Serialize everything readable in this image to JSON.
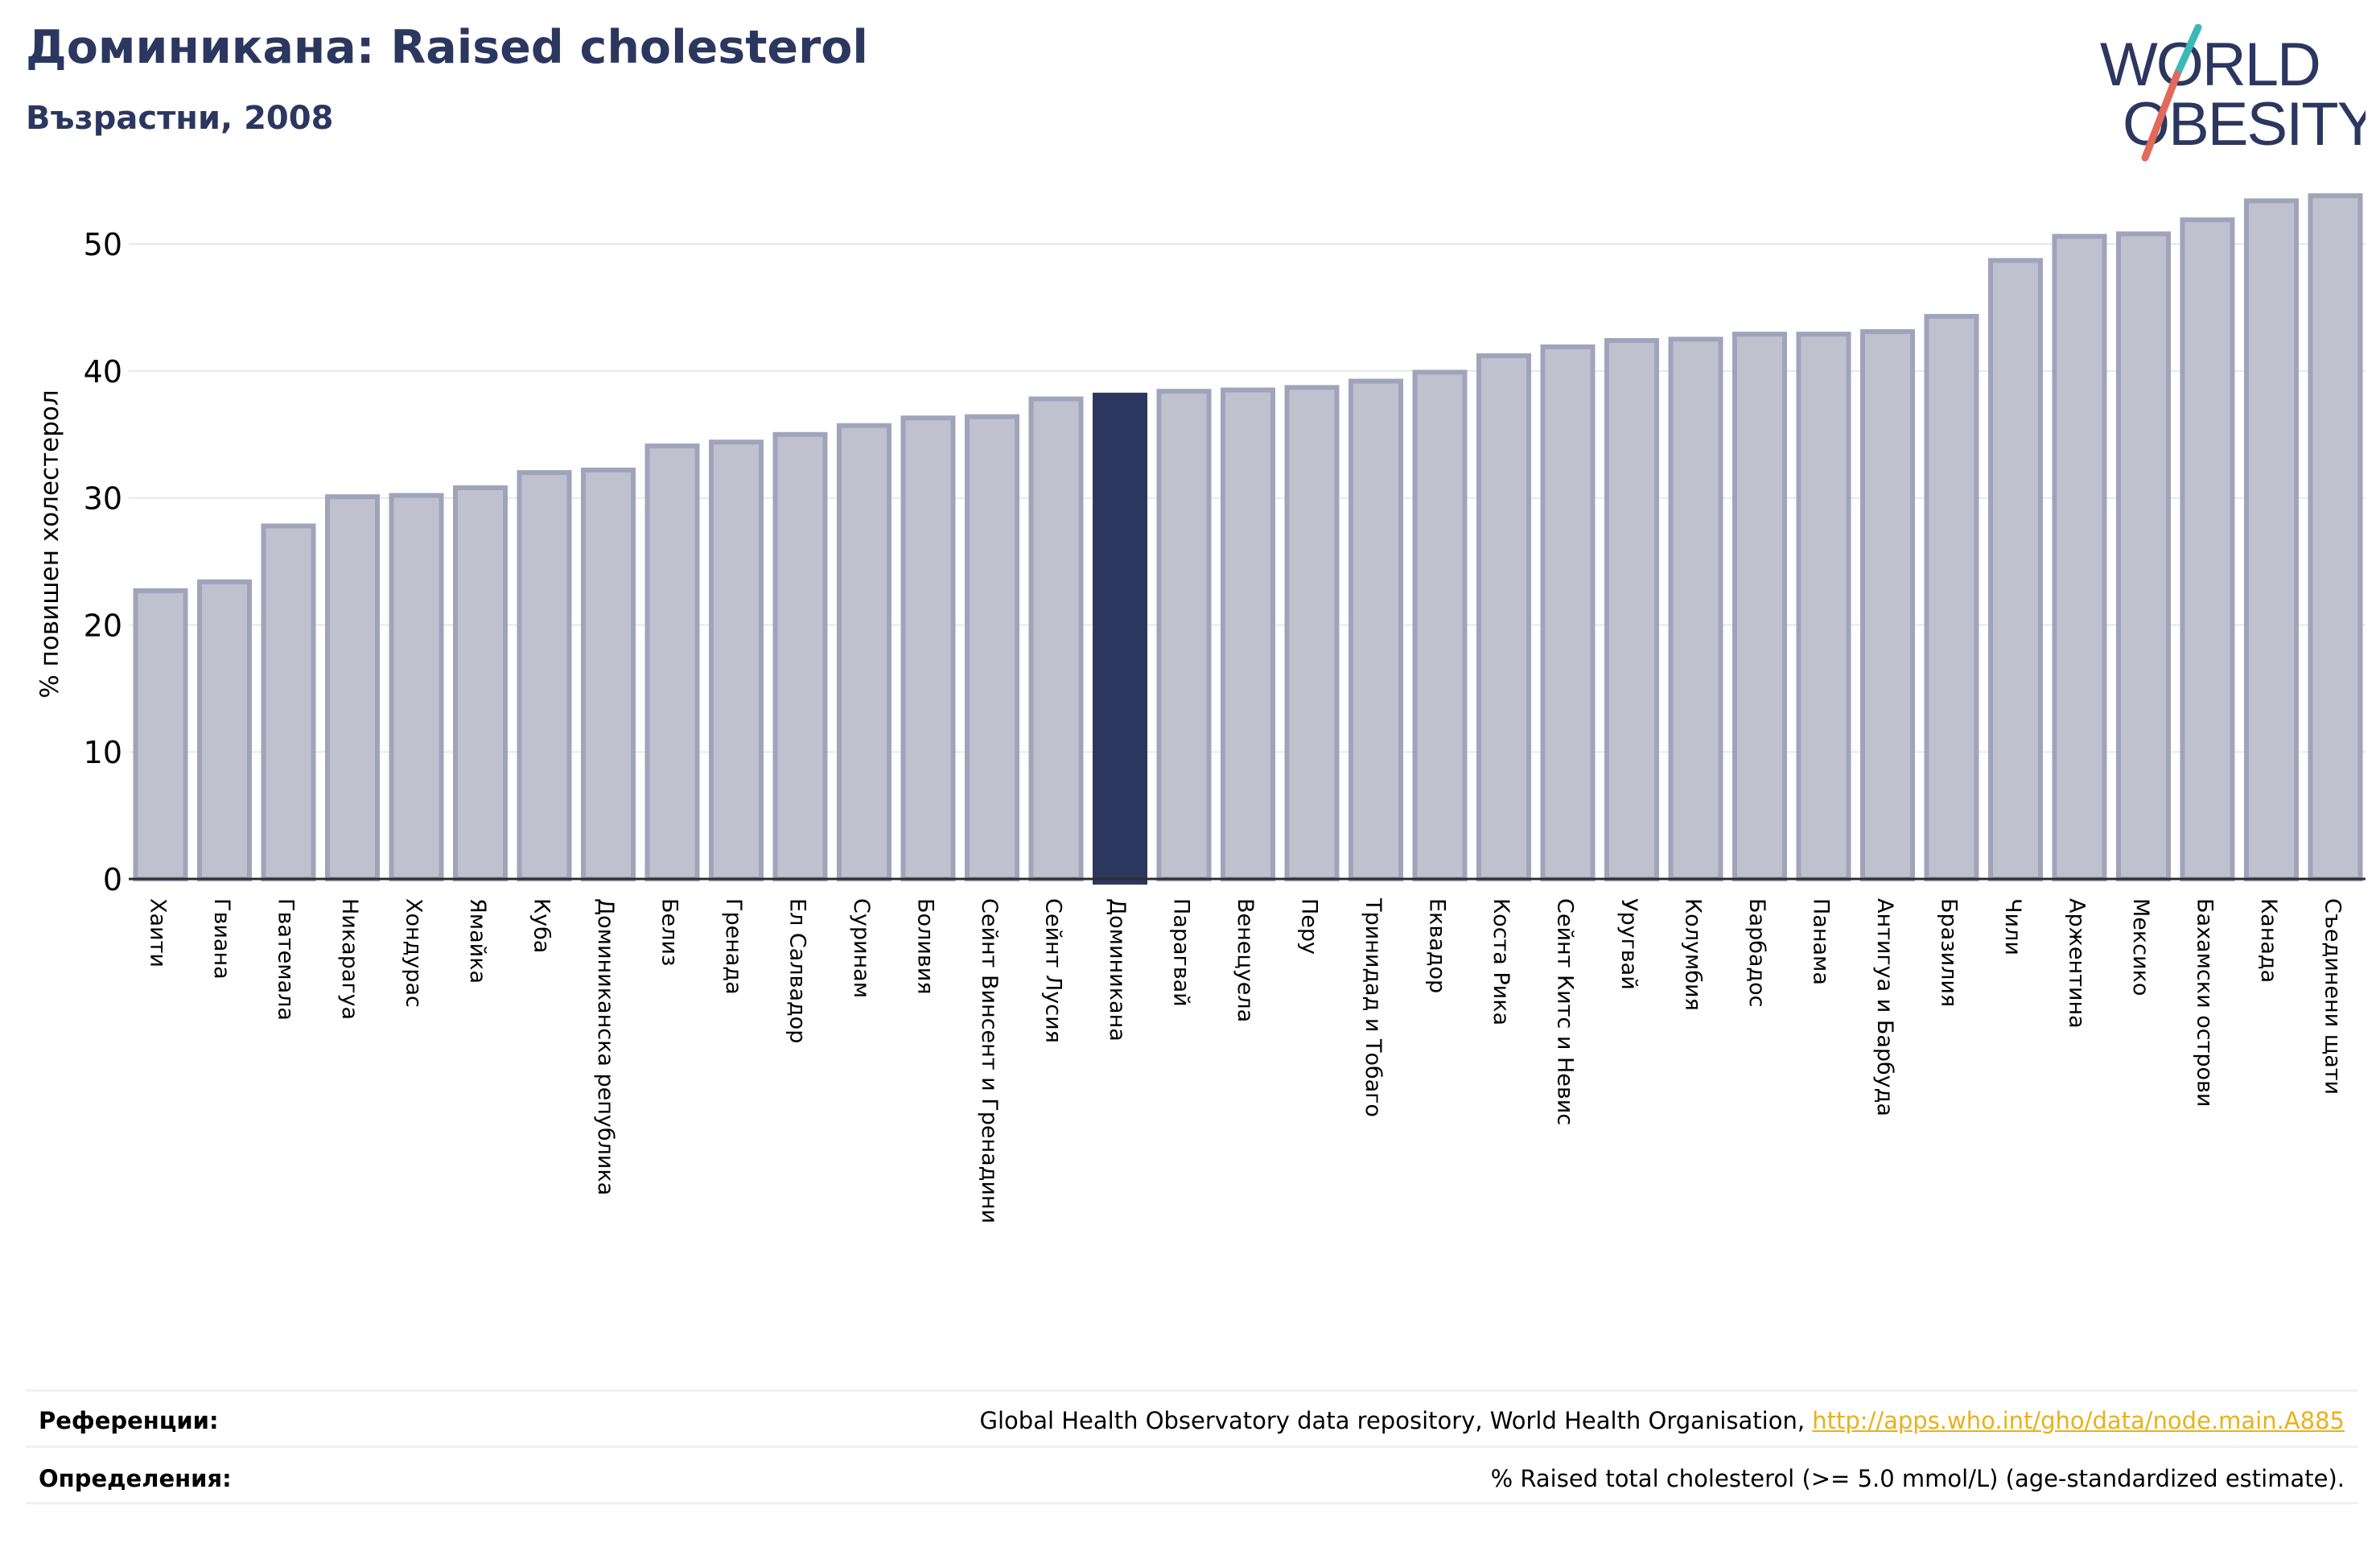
{
  "header": {
    "title": "Доминикана: Raised cholesterol",
    "subtitle": "Възрастни, 2008"
  },
  "logo": {
    "line1": "WORLD",
    "line2": "OBESITY"
  },
  "colors": {
    "title": "#2c3760",
    "bar": "#bfc1cf",
    "bar_stroke": "#a0a4bb",
    "highlight": "#2c3760",
    "grid": "#e6e8eb",
    "logo_teal": "#3bb8b8",
    "logo_red": "#e2695b",
    "link": "#e8b11a"
  },
  "chart_data": {
    "type": "bar",
    "ylabel": "% повишен холестерол",
    "ylim": [
      0,
      54
    ],
    "yticks": [
      0,
      10,
      20,
      30,
      40,
      50
    ],
    "grid": true,
    "highlight": "Доминикана",
    "categories": [
      "Хаити",
      "Гвиана",
      "Гватемала",
      "Никарагуа",
      "Хондурас",
      "Ямайка",
      "Куба",
      "Доминиканска република",
      "Белиз",
      "Гренада",
      "Ел Салвадор",
      "Суринам",
      "Боливия",
      "Сейнт Винсент и Гренадини",
      "Сейнт Лусия",
      "Доминикана",
      "Парагвай",
      "Венецуела",
      "Перу",
      "Тринидад и Тобаго",
      "Еквадор",
      "Коста Рика",
      "Сейнт Китс и Невис",
      "Уругвай",
      "Колумбия",
      "Барбадос",
      "Панама",
      "Антигуа и Барбуда",
      "Бразилия",
      "Чили",
      "Аржентина",
      "Мексико",
      "Бахамски острови",
      "Канада",
      "Съединени щати"
    ],
    "values": [
      22.7,
      23.4,
      27.8,
      30.1,
      30.2,
      30.8,
      32.0,
      32.2,
      34.1,
      34.4,
      35.0,
      35.7,
      36.3,
      36.4,
      37.8,
      38.1,
      38.4,
      38.5,
      38.7,
      39.2,
      39.9,
      41.2,
      41.9,
      42.4,
      42.5,
      42.9,
      42.9,
      43.1,
      44.3,
      48.7,
      50.6,
      50.8,
      51.9,
      53.4,
      53.8
    ]
  },
  "footer": {
    "references_label": "Референции:",
    "references_text": "Global Health Observatory data repository, World Health Organisation, ",
    "references_link": "http://apps.who.int/gho/data/node.main.A885",
    "definitions_label": "Определения:",
    "definitions_text": "% Raised total cholesterol (>= 5.0 mmol/L) (age-standardized estimate)."
  }
}
